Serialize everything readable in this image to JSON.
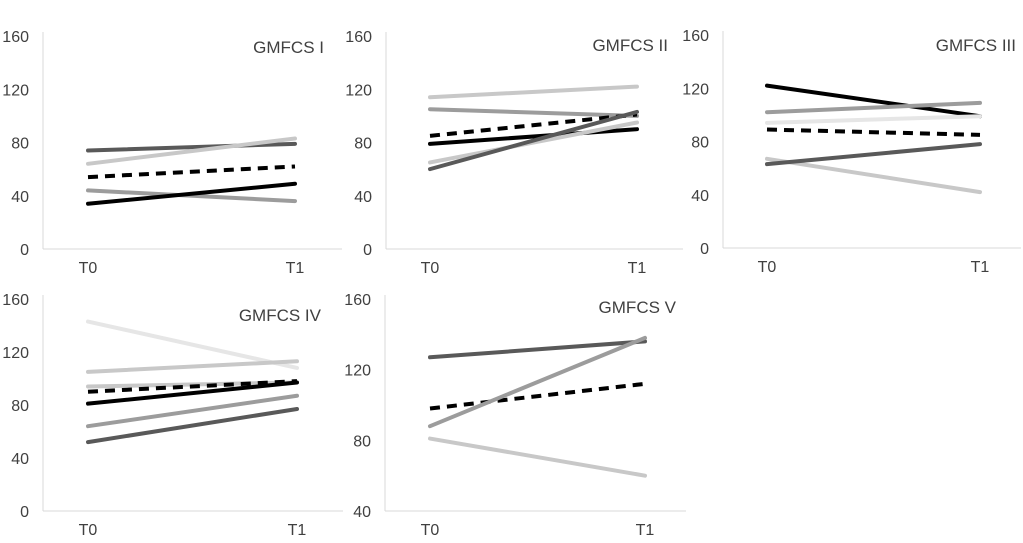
{
  "chart_data": [
    {
      "type": "line",
      "title": "GMFCS I",
      "categories": [
        "T0",
        "T1"
      ],
      "ylim": [
        0,
        160
      ],
      "yticks": [
        0,
        40,
        80,
        120,
        160
      ],
      "grid": false,
      "series": [
        {
          "values": [
            74,
            79
          ],
          "color": "#595959",
          "dash": false
        },
        {
          "values": [
            64,
            83
          ],
          "color": "#c8c8c8",
          "dash": false
        },
        {
          "values": [
            54,
            62
          ],
          "color": "#000000",
          "dash": true
        },
        {
          "values": [
            44,
            36
          ],
          "color": "#9c9c9c",
          "dash": false
        },
        {
          "values": [
            34,
            49
          ],
          "color": "#000000",
          "dash": false
        }
      ]
    },
    {
      "type": "line",
      "title": "GMFCS II",
      "categories": [
        "T0",
        "T1"
      ],
      "ylim": [
        0,
        160
      ],
      "yticks": [
        0,
        40,
        80,
        120,
        160
      ],
      "grid": false,
      "series": [
        {
          "values": [
            114,
            122
          ],
          "color": "#c8c8c8",
          "dash": false
        },
        {
          "values": [
            105,
            100
          ],
          "color": "#9c9c9c",
          "dash": false
        },
        {
          "values": [
            85,
            101
          ],
          "color": "#000000",
          "dash": true
        },
        {
          "values": [
            79,
            90
          ],
          "color": "#000000",
          "dash": false
        },
        {
          "values": [
            65,
            95
          ],
          "color": "#c8c8c8",
          "dash": false
        },
        {
          "values": [
            60,
            103
          ],
          "color": "#595959",
          "dash": false
        }
      ]
    },
    {
      "type": "line",
      "title": "GMFCS III",
      "categories": [
        "T0",
        "T1"
      ],
      "ylim": [
        0,
        160
      ],
      "yticks": [
        0,
        40,
        80,
        120,
        160
      ],
      "grid": false,
      "series": [
        {
          "values": [
            122,
            99
          ],
          "color": "#000000",
          "dash": false
        },
        {
          "values": [
            102,
            109
          ],
          "color": "#9c9c9c",
          "dash": false
        },
        {
          "values": [
            94,
            99
          ],
          "color": "#e6e6e6",
          "dash": false
        },
        {
          "values": [
            89,
            85
          ],
          "color": "#000000",
          "dash": true
        },
        {
          "values": [
            67,
            42
          ],
          "color": "#c8c8c8",
          "dash": false
        },
        {
          "values": [
            63,
            78
          ],
          "color": "#595959",
          "dash": false
        }
      ]
    },
    {
      "type": "line",
      "title": "GMFCS IV",
      "categories": [
        "T0",
        "T1"
      ],
      "ylim": [
        0,
        160
      ],
      "yticks": [
        0,
        40,
        80,
        120,
        160
      ],
      "grid": false,
      "series": [
        {
          "values": [
            143,
            108
          ],
          "color": "#e6e6e6",
          "dash": false
        },
        {
          "values": [
            105,
            113
          ],
          "color": "#c8c8c8",
          "dash": false
        },
        {
          "values": [
            94,
            97
          ],
          "color": "#c8c8c8",
          "dash": false
        },
        {
          "values": [
            90,
            98
          ],
          "color": "#000000",
          "dash": true
        },
        {
          "values": [
            81,
            97
          ],
          "color": "#000000",
          "dash": false
        },
        {
          "values": [
            64,
            87
          ],
          "color": "#9c9c9c",
          "dash": false
        },
        {
          "values": [
            52,
            77
          ],
          "color": "#595959",
          "dash": false
        }
      ]
    },
    {
      "type": "line",
      "title": "GMFCS V",
      "categories": [
        "T0",
        "T1"
      ],
      "ylim": [
        40,
        160
      ],
      "yticks": [
        40,
        80,
        120,
        160
      ],
      "grid": false,
      "series": [
        {
          "values": [
            127,
            136
          ],
          "color": "#595959",
          "dash": false
        },
        {
          "values": [
            98,
            112
          ],
          "color": "#000000",
          "dash": true
        },
        {
          "values": [
            88,
            138
          ],
          "color": "#9c9c9c",
          "dash": false
        },
        {
          "values": [
            81,
            60
          ],
          "color": "#c8c8c8",
          "dash": false
        }
      ]
    }
  ]
}
